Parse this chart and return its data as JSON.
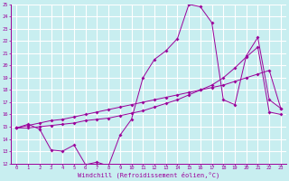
{
  "bg_color": "#c8eef0",
  "grid_color": "#ffffff",
  "line_color": "#9b009b",
  "marker": "D",
  "marker_size": 2,
  "xlabel": "Windchill (Refroidissement éolien,°C)",
  "xlim": [
    -0.5,
    23.5
  ],
  "ylim": [
    12,
    25
  ],
  "xticks": [
    0,
    1,
    2,
    3,
    4,
    5,
    6,
    7,
    8,
    9,
    10,
    11,
    12,
    13,
    14,
    15,
    16,
    17,
    18,
    19,
    20,
    21,
    22,
    23
  ],
  "yticks": [
    12,
    13,
    14,
    15,
    16,
    17,
    18,
    19,
    20,
    21,
    22,
    23,
    24,
    25
  ],
  "line1_x": [
    0,
    1,
    2,
    3,
    4,
    5,
    6,
    7,
    8,
    9,
    10,
    11,
    12,
    13,
    14,
    15,
    16,
    17,
    18,
    19,
    20,
    21,
    22,
    23
  ],
  "line1_y": [
    14.9,
    15.2,
    14.8,
    13.1,
    13.0,
    13.5,
    11.9,
    12.1,
    11.8,
    14.3,
    15.6,
    19.0,
    20.5,
    21.2,
    22.2,
    25.0,
    24.8,
    23.5,
    17.2,
    16.8,
    20.8,
    22.3,
    17.2,
    16.5
  ],
  "line2_x": [
    0,
    1,
    2,
    3,
    4,
    5,
    6,
    7,
    8,
    9,
    10,
    11,
    12,
    13,
    14,
    15,
    16,
    17,
    18,
    19,
    20,
    21,
    22,
    23
  ],
  "line2_y": [
    14.9,
    15.1,
    15.3,
    15.5,
    15.6,
    15.8,
    16.0,
    16.2,
    16.4,
    16.6,
    16.8,
    17.0,
    17.2,
    17.4,
    17.6,
    17.8,
    18.0,
    18.2,
    18.4,
    18.7,
    19.0,
    19.3,
    19.6,
    16.5
  ],
  "line3_x": [
    0,
    1,
    2,
    3,
    4,
    5,
    6,
    7,
    8,
    9,
    10,
    11,
    12,
    13,
    14,
    15,
    16,
    17,
    18,
    19,
    20,
    21,
    22,
    23
  ],
  "line3_y": [
    14.9,
    14.9,
    15.0,
    15.1,
    15.2,
    15.3,
    15.5,
    15.6,
    15.7,
    15.9,
    16.1,
    16.3,
    16.6,
    16.9,
    17.2,
    17.6,
    18.0,
    18.4,
    19.0,
    19.8,
    20.7,
    21.5,
    16.2,
    16.0
  ]
}
